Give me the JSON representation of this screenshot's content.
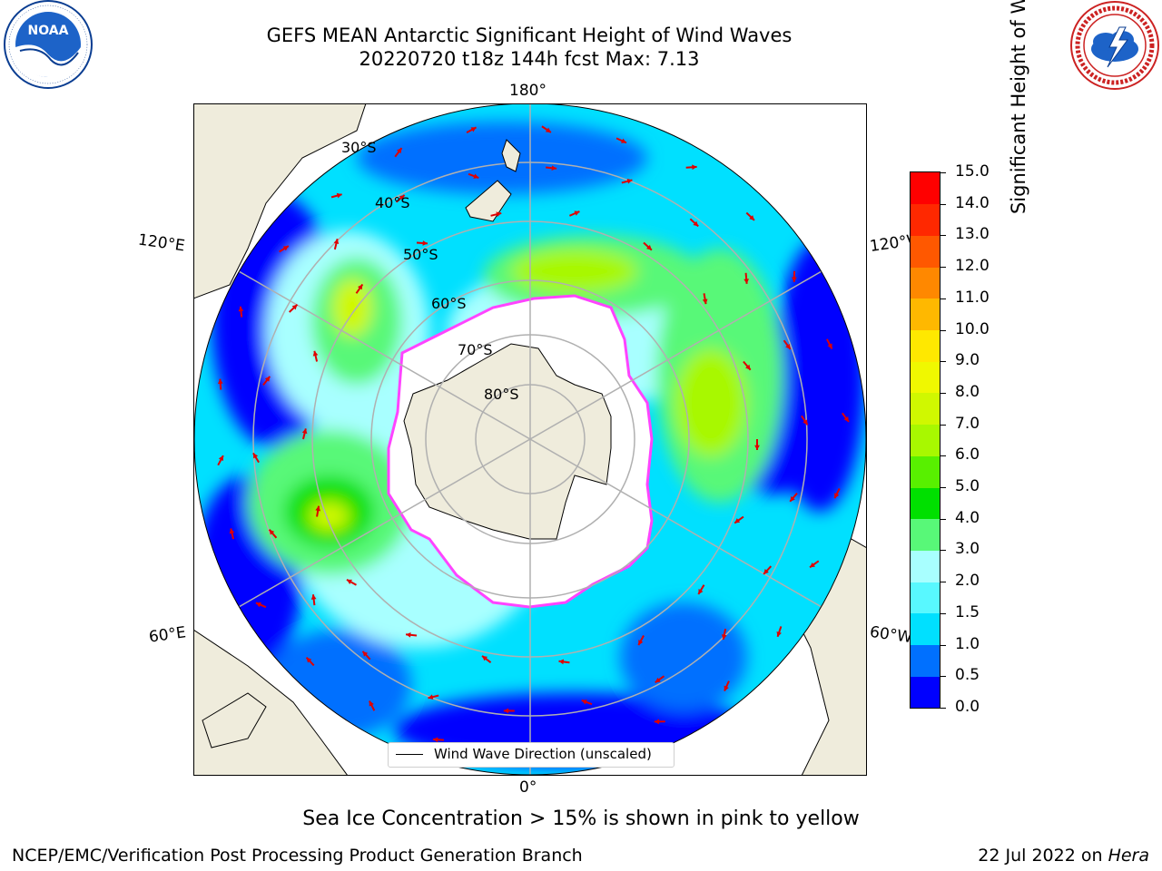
{
  "title": {
    "line1": "GEFS MEAN Antarctic Significant Height of Wind Waves",
    "line2": "20220720 t18z 144h fcst   Max: 7.13"
  },
  "logos": {
    "left_text": "NOAA",
    "left_ring": "NATIONAL OCEANIC AND ATMOSPHERIC ADMINISTRATION · U.S. DEPARTMENT OF COMMERCE",
    "right_ring": "NATIONAL WEATHER SERVICE"
  },
  "map": {
    "lon_labels": {
      "top": "180°",
      "bottom": "0°",
      "upper_left": "120°E",
      "upper_right": "120°W",
      "lower_left": "60°E",
      "lower_right": "60°W"
    },
    "lat_labels": [
      "30°S",
      "40°S",
      "50°S",
      "60°S",
      "70°S",
      "80°S"
    ],
    "legend": "Wind Wave Direction (unscaled)"
  },
  "colorbar": {
    "label": "Significant Height of Wind Waves [m]",
    "ticks": [
      "0.0",
      "0.5",
      "1.0",
      "1.5",
      "2.0",
      "3.0",
      "4.0",
      "5.0",
      "6.0",
      "7.0",
      "8.0",
      "9.0",
      "10.0",
      "11.0",
      "12.0",
      "13.0",
      "14.0",
      "15.0"
    ],
    "colors": [
      "#0000ff",
      "#0070ff",
      "#00e0ff",
      "#58f8ff",
      "#a8ffff",
      "#58f878",
      "#00e000",
      "#58f000",
      "#a8f800",
      "#d0f800",
      "#f0f800",
      "#ffe800",
      "#ffb800",
      "#ff8800",
      "#ff5800",
      "#ff2800",
      "#ff0000"
    ]
  },
  "caption": "Sea Ice Concentration > 15% is shown in pink to yellow",
  "footer": {
    "left": "NCEP/EMC/Verification Post Processing Product Generation Branch",
    "right_prefix": "22 Jul 2022 on ",
    "right_machine": "Hera"
  }
}
